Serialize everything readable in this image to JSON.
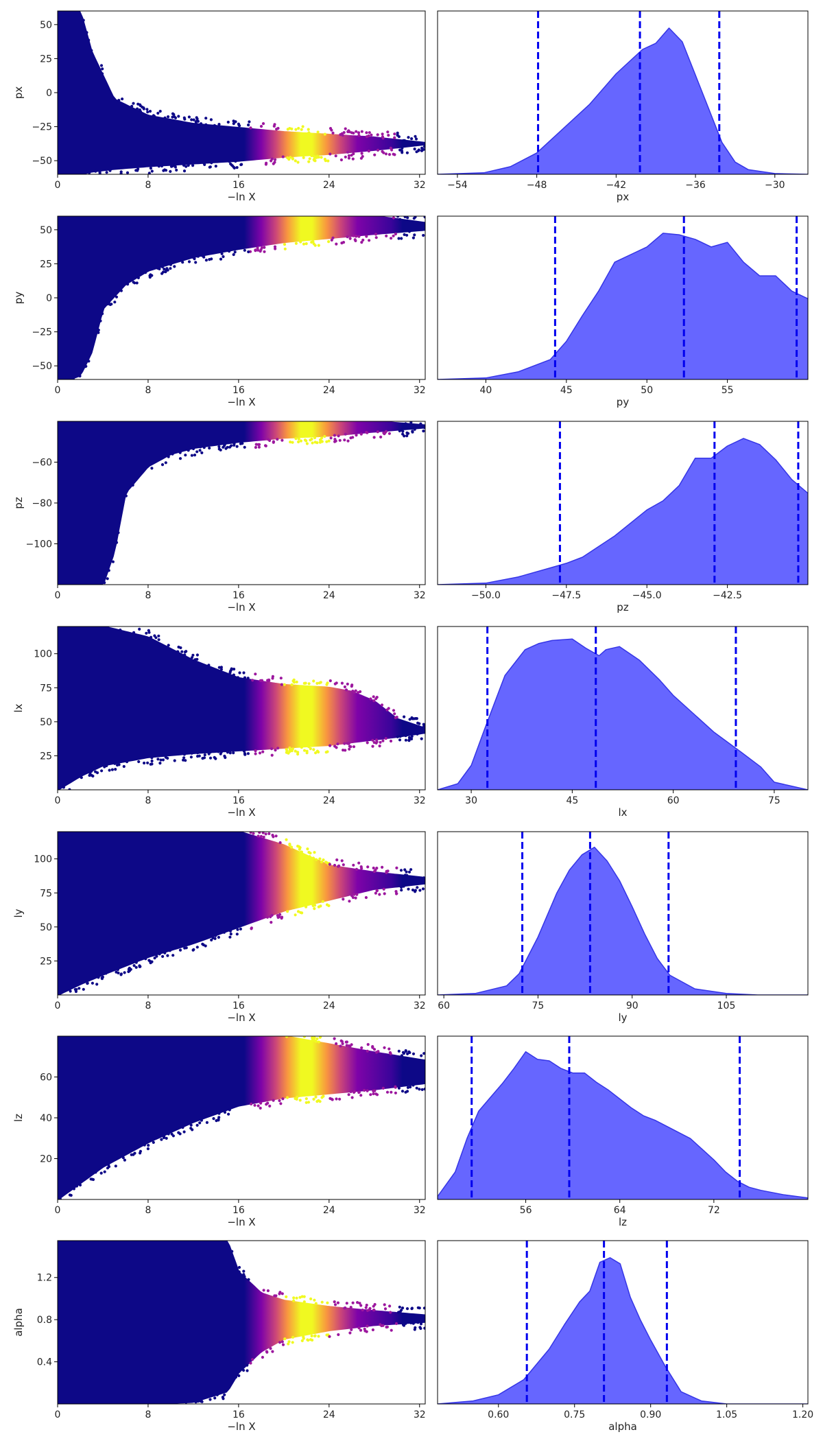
{
  "chart_data": [
    {
      "type": "scatter",
      "panel": "trace",
      "param": "px",
      "xlabel": "−ln X",
      "ylabel": "px",
      "xlim": [
        0,
        32.5
      ],
      "ylim": [
        -60,
        60
      ],
      "x_ticks": [
        0,
        8,
        16,
        24,
        32
      ],
      "y_ticks": [
        50,
        25,
        0,
        -25,
        -50
      ],
      "x_tick_labels": [
        "0",
        "8",
        "16",
        "24",
        "32"
      ],
      "y_tick_labels": [
        "50",
        "25",
        "0",
        "−25",
        "−50"
      ],
      "trend": {
        "x": [
          0,
          1,
          2,
          3,
          5,
          8,
          12,
          16,
          20,
          24,
          28,
          32.5
        ],
        "lower": [
          -60,
          -60,
          -60,
          -58,
          -56,
          -54,
          -52,
          -50,
          -47,
          -45,
          -42,
          -38
        ],
        "upper": [
          60,
          60,
          60,
          30,
          -5,
          -17,
          -23,
          -26,
          -29,
          -31,
          -33,
          -37
        ]
      },
      "colorbar_band": [
        17,
        29
      ],
      "cmap": "plasma"
    },
    {
      "type": "area",
      "panel": "marginal",
      "param": "px",
      "xlabel": "px",
      "xlim": [
        -55.5,
        -27.5
      ],
      "x_ticks": [
        -54,
        -48,
        -42,
        -36,
        -30
      ],
      "x_tick_labels": [
        "−54",
        "−48",
        "−42",
        "−36",
        "−30"
      ],
      "density": {
        "x": [
          -55.5,
          -52,
          -50,
          -48,
          -46,
          -44,
          -42,
          -40,
          -39,
          -38,
          -37,
          -36,
          -35,
          -34,
          -33,
          -32,
          -30,
          -27.5
        ],
        "y": [
          0,
          0.01,
          0.05,
          0.14,
          0.3,
          0.46,
          0.66,
          0.82,
          0.86,
          0.96,
          0.87,
          0.65,
          0.43,
          0.21,
          0.08,
          0.03,
          0.005,
          0
        ]
      },
      "quantiles": [
        -47.9,
        -40.2,
        -34.2
      ]
    },
    {
      "type": "scatter",
      "panel": "trace",
      "param": "py",
      "xlabel": "−ln X",
      "ylabel": "py",
      "xlim": [
        0,
        32.5
      ],
      "ylim": [
        -60,
        60
      ],
      "x_ticks": [
        0,
        8,
        16,
        24,
        32
      ],
      "y_ticks": [
        50,
        25,
        0,
        -25,
        -50
      ],
      "x_tick_labels": [
        "0",
        "8",
        "16",
        "24",
        "32"
      ],
      "y_tick_labels": [
        "50",
        "25",
        "0",
        "−25",
        "−50"
      ],
      "trend": {
        "x": [
          0,
          1,
          2,
          3,
          4,
          6,
          8,
          12,
          16,
          20,
          24,
          28,
          32.5
        ],
        "lower": [
          -60,
          -60,
          -57,
          -40,
          -8,
          10,
          20,
          30,
          36,
          41,
          44,
          47,
          50
        ],
        "upper": [
          60,
          60,
          60,
          60,
          60,
          60,
          60,
          60,
          60,
          60,
          60,
          60,
          55
        ]
      },
      "colorbar_band": [
        17,
        29
      ],
      "cmap": "plasma"
    },
    {
      "type": "area",
      "panel": "marginal",
      "param": "py",
      "xlabel": "py",
      "xlim": [
        37,
        60
      ],
      "x_ticks": [
        40,
        45,
        50,
        55
      ],
      "x_tick_labels": [
        "40",
        "45",
        "50",
        "55"
      ],
      "density": {
        "x": [
          37,
          40,
          42,
          44,
          45,
          46,
          47,
          48,
          49,
          50,
          51,
          52,
          53,
          54,
          55,
          56,
          57,
          58,
          59,
          60
        ],
        "y": [
          0,
          0.01,
          0.05,
          0.13,
          0.25,
          0.42,
          0.58,
          0.77,
          0.82,
          0.87,
          0.96,
          0.95,
          0.92,
          0.87,
          0.9,
          0.77,
          0.68,
          0.68,
          0.58,
          0.53
        ]
      },
      "quantiles": [
        44.3,
        52.3,
        59.3
      ]
    },
    {
      "type": "scatter",
      "panel": "trace",
      "param": "pz",
      "xlabel": "−ln X",
      "ylabel": "pz",
      "xlim": [
        0,
        32.5
      ],
      "ylim": [
        -120,
        -40
      ],
      "x_ticks": [
        0,
        8,
        16,
        24,
        32
      ],
      "y_ticks": [
        -60,
        -80,
        -100
      ],
      "x_tick_labels": [
        "0",
        "8",
        "16",
        "24",
        "32"
      ],
      "y_tick_labels": [
        "−60",
        "−80",
        "−100"
      ],
      "trend": {
        "x": [
          0,
          2,
          3,
          4,
          5,
          6,
          8,
          10,
          12,
          16,
          20,
          24,
          28,
          32.5
        ],
        "lower": [
          -120,
          -120,
          -120,
          -120,
          -104,
          -75,
          -62,
          -56,
          -53,
          -50,
          -48,
          -47,
          -45,
          -43
        ],
        "upper": [
          -40,
          -40,
          -40,
          -40,
          -40,
          -40,
          -40,
          -40,
          -40,
          -40,
          -40,
          -40,
          -40,
          -42
        ]
      },
      "colorbar_band": [
        17,
        29
      ],
      "cmap": "plasma"
    },
    {
      "type": "area",
      "panel": "marginal",
      "param": "pz",
      "xlabel": "pz",
      "xlim": [
        -51.5,
        -40
      ],
      "x_ticks": [
        -50,
        -47.5,
        -45,
        -42.5
      ],
      "x_tick_labels": [
        "−50.0",
        "−47.5",
        "−45.0",
        "−42.5"
      ],
      "density": {
        "x": [
          -51.5,
          -50,
          -49,
          -48,
          -47.5,
          -47,
          -46,
          -45,
          -44.5,
          -44,
          -43.5,
          -43,
          -42.5,
          -42,
          -41.5,
          -41,
          -40.5,
          -40
        ],
        "y": [
          0,
          0.01,
          0.05,
          0.11,
          0.14,
          0.18,
          0.32,
          0.49,
          0.55,
          0.65,
          0.83,
          0.83,
          0.91,
          0.96,
          0.92,
          0.82,
          0.69,
          0.6
        ]
      },
      "quantiles": [
        -47.7,
        -42.9,
        -40.3
      ]
    },
    {
      "type": "scatter",
      "panel": "trace",
      "param": "lx",
      "xlabel": "−ln X",
      "ylabel": "lx",
      "xlim": [
        0,
        32.5
      ],
      "ylim": [
        0,
        120
      ],
      "x_ticks": [
        0,
        8,
        16,
        24,
        32
      ],
      "y_ticks": [
        100,
        75,
        50,
        25
      ],
      "x_tick_labels": [
        "0",
        "8",
        "16",
        "24",
        "32"
      ],
      "y_tick_labels": [
        "100",
        "75",
        "50",
        "25"
      ],
      "trend": {
        "x": [
          0,
          2,
          4,
          8,
          12,
          16,
          20,
          24,
          26,
          28,
          30,
          32.5
        ],
        "lower": [
          0,
          10,
          18,
          24,
          27,
          29,
          31,
          33,
          35,
          37,
          39,
          42
        ],
        "upper": [
          120,
          120,
          120,
          112,
          95,
          82,
          77,
          75,
          72,
          65,
          52,
          45
        ]
      },
      "colorbar_band": [
        17,
        29
      ],
      "cmap": "plasma"
    },
    {
      "type": "area",
      "panel": "marginal",
      "param": "lx",
      "xlabel": "lx",
      "xlim": [
        25,
        80
      ],
      "x_ticks": [
        30,
        45,
        60,
        75
      ],
      "x_tick_labels": [
        "30",
        "45",
        "60",
        "75"
      ],
      "density": {
        "x": [
          25,
          28,
          30,
          32,
          35,
          38,
          40,
          42,
          45,
          47,
          49,
          50,
          52,
          55,
          58,
          60,
          63,
          66,
          70,
          73,
          75,
          80
        ],
        "y": [
          0,
          0.04,
          0.16,
          0.4,
          0.75,
          0.92,
          0.96,
          0.98,
          0.99,
          0.93,
          0.88,
          0.92,
          0.94,
          0.85,
          0.72,
          0.62,
          0.5,
          0.38,
          0.25,
          0.15,
          0.05,
          0
        ]
      },
      "quantiles": [
        32.4,
        48.5,
        69.3
      ]
    },
    {
      "type": "scatter",
      "panel": "trace",
      "param": "ly",
      "xlabel": "−ln X",
      "ylabel": "ly",
      "xlim": [
        0,
        32.5
      ],
      "ylim": [
        0,
        120
      ],
      "x_ticks": [
        0,
        8,
        16,
        24,
        32
      ],
      "y_ticks": [
        100,
        75,
        50,
        25
      ],
      "x_tick_labels": [
        "0",
        "8",
        "16",
        "24",
        "32"
      ],
      "y_tick_labels": [
        "100",
        "75",
        "50",
        "25"
      ],
      "trend": {
        "x": [
          0,
          2,
          4,
          8,
          12,
          16,
          20,
          24,
          28,
          32.5
        ],
        "lower": [
          0,
          8,
          15,
          28,
          38,
          50,
          62,
          70,
          78,
          82
        ],
        "upper": [
          120,
          120,
          120,
          120,
          120,
          120,
          110,
          95,
          90,
          86
        ]
      },
      "colorbar_band": [
        17,
        29
      ],
      "cmap": "plasma"
    },
    {
      "type": "area",
      "panel": "marginal",
      "param": "ly",
      "xlabel": "ly",
      "xlim": [
        59,
        118
      ],
      "x_ticks": [
        60,
        75,
        90,
        105
      ],
      "x_tick_labels": [
        "60",
        "75",
        "90",
        "105"
      ],
      "density": {
        "x": [
          59,
          65,
          70,
          72,
          75,
          78,
          80,
          82,
          84,
          86,
          88,
          90,
          92,
          94,
          96,
          100,
          105,
          110,
          118
        ],
        "y": [
          0,
          0.01,
          0.06,
          0.14,
          0.38,
          0.67,
          0.82,
          0.92,
          0.97,
          0.88,
          0.75,
          0.58,
          0.4,
          0.24,
          0.13,
          0.04,
          0.01,
          0,
          0
        ]
      },
      "quantiles": [
        72.5,
        83.3,
        95.8
      ]
    },
    {
      "type": "scatter",
      "panel": "trace",
      "param": "lz",
      "xlabel": "−ln X",
      "ylabel": "lz",
      "xlim": [
        0,
        32.5
      ],
      "ylim": [
        0,
        80
      ],
      "x_ticks": [
        0,
        8,
        16,
        24,
        32
      ],
      "y_ticks": [
        60,
        40,
        20
      ],
      "x_tick_labels": [
        "0",
        "8",
        "16",
        "24",
        "32"
      ],
      "y_tick_labels": [
        "60",
        "40",
        "20"
      ],
      "trend": {
        "x": [
          0,
          2,
          4,
          8,
          12,
          16,
          20,
          24,
          28,
          32.5
        ],
        "lower": [
          0,
          8,
          16,
          28,
          38,
          46,
          50,
          52,
          54,
          57
        ],
        "upper": [
          80,
          80,
          80,
          80,
          80,
          80,
          80,
          76,
          72,
          68
        ]
      },
      "colorbar_band": [
        17,
        29
      ],
      "cmap": "plasma"
    },
    {
      "type": "area",
      "panel": "marginal",
      "param": "lz",
      "xlabel": "lz",
      "xlim": [
        48.5,
        80
      ],
      "x_ticks": [
        56,
        64,
        72
      ],
      "x_tick_labels": [
        "56",
        "64",
        "72"
      ],
      "density": {
        "x": [
          48.5,
          50,
          51,
          52,
          53,
          54,
          55,
          56,
          57,
          58,
          59,
          60,
          61,
          62,
          63,
          64,
          65,
          66,
          67,
          68,
          69,
          70,
          71,
          72,
          73,
          74,
          75,
          76,
          78,
          80
        ],
        "y": [
          0.02,
          0.18,
          0.4,
          0.58,
          0.67,
          0.76,
          0.86,
          0.97,
          0.92,
          0.91,
          0.86,
          0.83,
          0.83,
          0.77,
          0.72,
          0.66,
          0.6,
          0.55,
          0.52,
          0.48,
          0.44,
          0.4,
          0.33,
          0.26,
          0.18,
          0.12,
          0.08,
          0.06,
          0.03,
          0.01
        ]
      },
      "quantiles": [
        51.4,
        59.7,
        74.2
      ]
    },
    {
      "type": "scatter",
      "panel": "trace",
      "param": "alpha",
      "xlabel": "−ln X",
      "ylabel": "alpha",
      "xlim": [
        0,
        32.5
      ],
      "ylim": [
        0,
        1.55
      ],
      "x_ticks": [
        0,
        8,
        16,
        24,
        32
      ],
      "y_ticks": [
        1.2,
        0.8,
        0.4
      ],
      "x_tick_labels": [
        "0",
        "8",
        "16",
        "24",
        "32"
      ],
      "y_tick_labels": [
        "1.2",
        "0.8",
        "0.4"
      ],
      "trend": {
        "x": [
          0,
          4,
          8,
          12,
          15,
          16,
          18,
          20,
          24,
          28,
          32.5
        ],
        "lower": [
          0,
          0,
          0,
          0.02,
          0.12,
          0.3,
          0.5,
          0.62,
          0.7,
          0.75,
          0.78
        ],
        "upper": [
          1.55,
          1.55,
          1.55,
          1.55,
          1.55,
          1.25,
          1.05,
          0.98,
          0.92,
          0.88,
          0.84
        ]
      },
      "colorbar_band": [
        17,
        29
      ],
      "cmap": "plasma"
    },
    {
      "type": "area",
      "panel": "marginal",
      "param": "alpha",
      "xlabel": "alpha",
      "xlim": [
        0.48,
        1.21
      ],
      "x_ticks": [
        0.6,
        0.75,
        0.9,
        1.05,
        1.2
      ],
      "x_tick_labels": [
        "0.60",
        "0.75",
        "0.90",
        "1.05",
        "1.20"
      ],
      "density": {
        "x": [
          0.48,
          0.55,
          0.6,
          0.65,
          0.7,
          0.73,
          0.76,
          0.78,
          0.8,
          0.82,
          0.84,
          0.86,
          0.88,
          0.9,
          0.93,
          0.96,
          1.0,
          1.05,
          1.21
        ],
        "y": [
          0,
          0.02,
          0.06,
          0.16,
          0.36,
          0.52,
          0.67,
          0.74,
          0.93,
          0.96,
          0.92,
          0.7,
          0.55,
          0.42,
          0.24,
          0.08,
          0.02,
          0,
          0
        ]
      },
      "quantiles": [
        0.656,
        0.808,
        0.932
      ]
    }
  ],
  "colors": {
    "fill": "#6666ff",
    "edge": "#3535e6",
    "quantile_line": "#0000ee"
  }
}
